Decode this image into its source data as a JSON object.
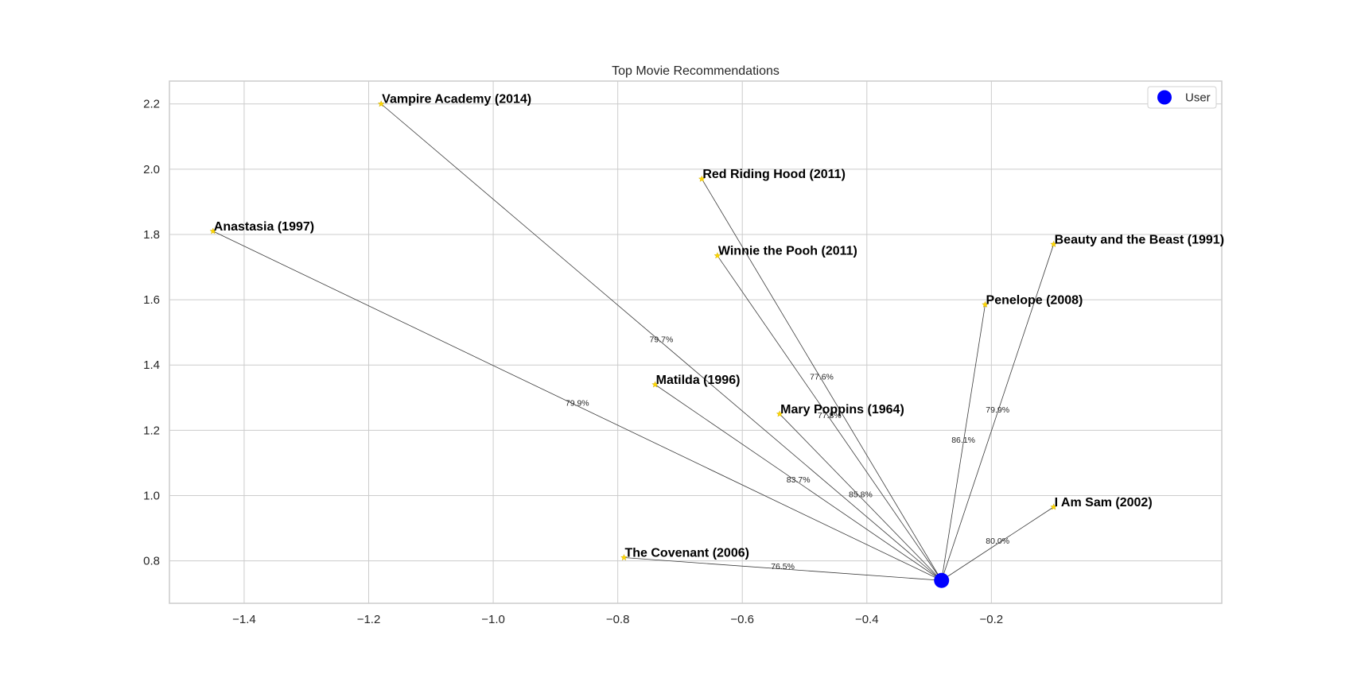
{
  "chart_data": {
    "type": "scatter",
    "title": "Top Movie Recommendations",
    "xlabel": "",
    "ylabel": "",
    "xlim": [
      -1.52,
      0.17
    ],
    "ylim": [
      0.67,
      2.27
    ],
    "grid": true,
    "legend_position": "top-right",
    "x_ticks": [
      -1.4,
      -1.2,
      -1.0,
      -0.8,
      -0.6,
      -0.4,
      -0.2
    ],
    "x_tick_labels": [
      "−1.4",
      "−1.2",
      "−1.0",
      "−0.8",
      "−0.6",
      "−0.4",
      "−0.2"
    ],
    "y_ticks": [
      0.8,
      1.0,
      1.2,
      1.4,
      1.6,
      1.8,
      2.0,
      2.2
    ],
    "y_tick_labels": [
      "0.8",
      "1.0",
      "1.2",
      "1.4",
      "1.6",
      "1.8",
      "2.0",
      "2.2"
    ],
    "user": {
      "label": "User",
      "x": -0.28,
      "y": 0.74,
      "color": "#0000ff"
    },
    "movie_marker_color": "#ffd700",
    "series": [
      {
        "name": "User",
        "points": [
          {
            "x": -0.28,
            "y": 0.74
          }
        ]
      }
    ],
    "movies": [
      {
        "title": "Vampire Academy (2014)",
        "x": -1.18,
        "y": 2.2,
        "similarity": "79.7%"
      },
      {
        "title": "Red Riding Hood (2011)",
        "x": -0.665,
        "y": 1.97,
        "similarity": "77.6%"
      },
      {
        "title": "Anastasia (1997)",
        "x": -1.45,
        "y": 1.81,
        "similarity": "79.9%"
      },
      {
        "title": "Winnie the Pooh (2011)",
        "x": -0.64,
        "y": 1.735,
        "similarity": "77.8%"
      },
      {
        "title": "Beauty and the Beast (1991)",
        "x": -0.1,
        "y": 1.77,
        "similarity": "79.9%"
      },
      {
        "title": "Penelope (2008)",
        "x": -0.21,
        "y": 1.585,
        "similarity": "86.1%"
      },
      {
        "title": "Matilda (1996)",
        "x": -0.74,
        "y": 1.34,
        "similarity": "83.7%"
      },
      {
        "title": "Mary Poppins (1964)",
        "x": -0.54,
        "y": 1.25,
        "similarity": "85.8%"
      },
      {
        "title": "I Am Sam (2002)",
        "x": -0.1,
        "y": 0.965,
        "similarity": "80.0%"
      },
      {
        "title": "The Covenant (2006)",
        "x": -0.79,
        "y": 0.81,
        "similarity": "76.5%"
      }
    ]
  }
}
